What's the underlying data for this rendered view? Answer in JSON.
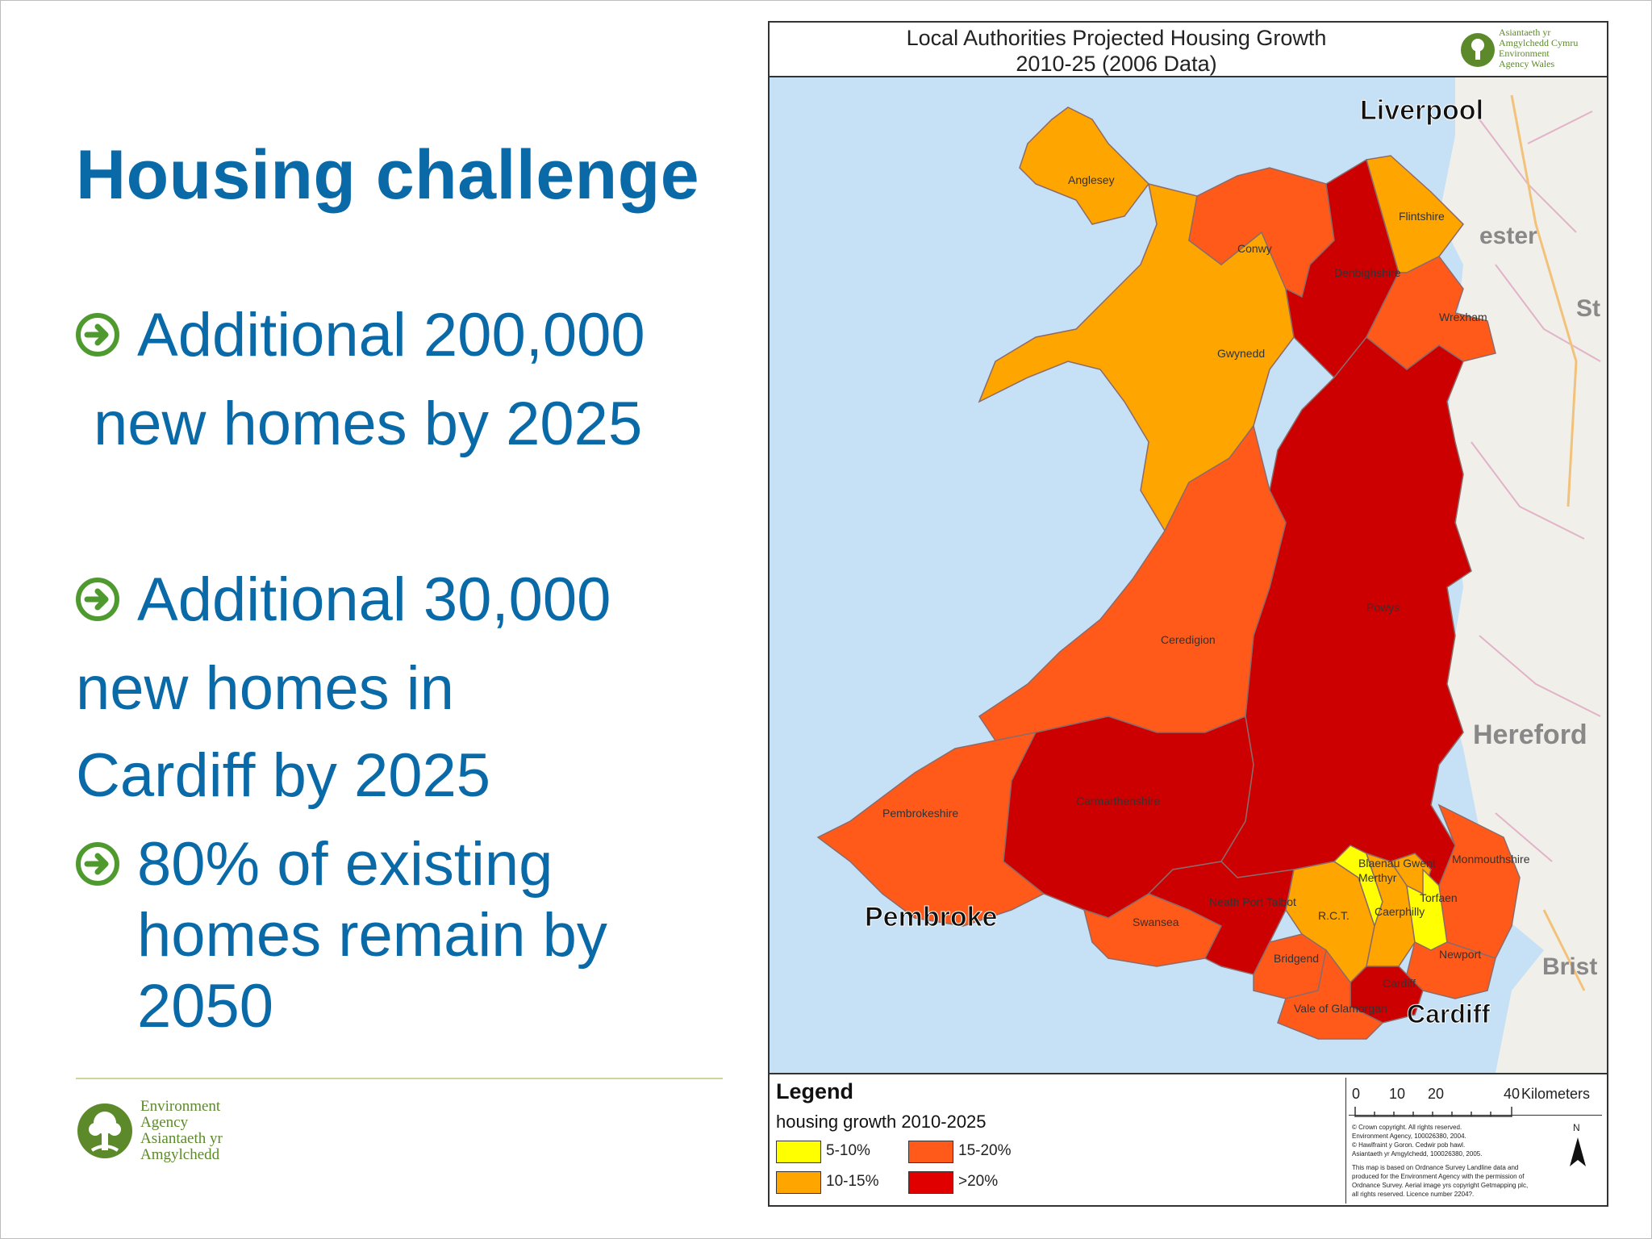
{
  "slide": {
    "title": "Housing challenge",
    "bullet1_line1": "Additional 200,000",
    "bullet1_line2": "new homes by 2025",
    "bullet2_line1": "Additional 30,000",
    "bullet2_line2": "new homes in",
    "bullet2_line3": "Cardiff by 2025",
    "bullet3_line1": "80% of existing",
    "bullet3_line2": "homes remain by",
    "bullet3_line3": "2050",
    "bullet_icon": "arrow-circle-right-icon",
    "text_color": "#0a6aa8",
    "bullet_color": "#4f9a2e"
  },
  "footer_logo": {
    "line1": "Environment",
    "line2": "Agency",
    "line3": "Asiantaeth yr",
    "line4": "Amgylchedd",
    "color": "#5c8a2a"
  },
  "map": {
    "title_line1": "Local Authorities Projected Housing Growth",
    "title_line2": "2010-25 (2006 Data)",
    "logo_lines": [
      "Asiantaeth yr",
      "Amgylchedd Cymru",
      "Environment",
      "Agency Wales"
    ],
    "places": {
      "liverpool": "Liverpool",
      "chester": "ester",
      "stoke": "St",
      "hereford": "Hereford",
      "bristol": "Brist",
      "pembroke": "Pembroke",
      "cardiff": "Cardiff"
    },
    "authorities": [
      {
        "name": "Anglesey",
        "category": "10-15%"
      },
      {
        "name": "Conwy",
        "category": "15-20%"
      },
      {
        "name": "Denbighshire",
        "category": ">20%"
      },
      {
        "name": "Flintshire",
        "category": "10-15%"
      },
      {
        "name": "Wrexham",
        "category": "15-20%"
      },
      {
        "name": "Gwynedd",
        "category": "10-15%"
      },
      {
        "name": "Powys",
        "category": ">20%"
      },
      {
        "name": "Ceredigion",
        "category": "15-20%"
      },
      {
        "name": "Carmarthenshire",
        "category": ">20%"
      },
      {
        "name": "Pembrokeshire",
        "category": "15-20%"
      },
      {
        "name": "Swansea",
        "category": "15-20%"
      },
      {
        "name": "Neath Port Talbot",
        "category": ">20%"
      },
      {
        "name": "Bridgend",
        "category": "15-20%"
      },
      {
        "name": "R.C.T.",
        "category": "10-15%"
      },
      {
        "name": "Merthyr",
        "category": "5-10%"
      },
      {
        "name": "Blaenau Gwent",
        "category": "10-15%"
      },
      {
        "name": "Caerphilly",
        "category": "10-15%"
      },
      {
        "name": "Torfaen",
        "category": "5-10%"
      },
      {
        "name": "Monmouthshire",
        "category": "15-20%"
      },
      {
        "name": "Newport",
        "category": "15-20%"
      },
      {
        "name": "Cardiff",
        "category": ">20%"
      },
      {
        "name": "Vale of Glamorgan",
        "category": "15-20%"
      }
    ],
    "legend": {
      "title": "Legend",
      "subtitle": "housing growth 2010-2025",
      "items": [
        {
          "label": "5-10%",
          "color": "#ffff00"
        },
        {
          "label": "10-15%",
          "color": "#ffa500"
        },
        {
          "label": "15-20%",
          "color": "#ff5a1a"
        },
        {
          "label": ">20%",
          "color": "#e00000"
        }
      ]
    },
    "scale": {
      "t0": "0",
      "t1": "10",
      "t2": "20",
      "t3": "40",
      "unit": "Kilometers"
    },
    "north": "N",
    "copyright": [
      "© Crown copyright. All rights reserved.",
      "Environment Agency, 100026380, 2004.",
      "© Hawlfraint y Goron. Cedwir pob hawl.",
      "Asiantaeth yr Amgylchedd, 100026380, 2005.",
      "This map is based on Ordnance Survey Landline data and",
      "produced for the Environment Agency with the permission of",
      "Ordnance Survey. Aerial image yrs copyright Getmapping plc,",
      "all rights reserved. Licence number 2204?."
    ],
    "colors": {
      "sea": "#c6e1f5",
      "land": "#f1efe9"
    }
  }
}
